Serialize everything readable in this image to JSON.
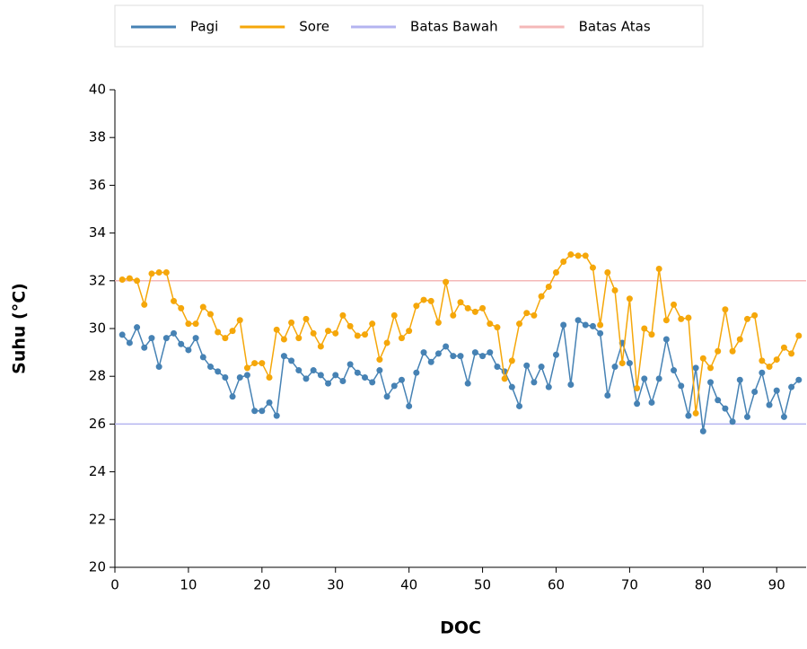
{
  "chart_data": {
    "type": "line",
    "x_label": "DOC",
    "y_label": "Suhu (°C)",
    "x": [
      1,
      2,
      3,
      4,
      5,
      6,
      7,
      8,
      9,
      10,
      11,
      12,
      13,
      14,
      15,
      16,
      17,
      18,
      19,
      20,
      21,
      22,
      23,
      24,
      25,
      26,
      27,
      28,
      29,
      30,
      31,
      32,
      33,
      34,
      35,
      36,
      37,
      38,
      39,
      40,
      41,
      42,
      43,
      44,
      45,
      46,
      47,
      48,
      49,
      50,
      51,
      52,
      53,
      54,
      55,
      56,
      57,
      58,
      59,
      60,
      61,
      62,
      63,
      64,
      65,
      66,
      67,
      68,
      69,
      70,
      71,
      72,
      73,
      74,
      75,
      76,
      77,
      78,
      79,
      80,
      81,
      82,
      83,
      84,
      85,
      86,
      87,
      88,
      89,
      90,
      91,
      92,
      93
    ],
    "series": [
      {
        "name": "Pagi",
        "color": "#4682b4",
        "values": [
          29.74,
          29.4,
          30.05,
          29.2,
          29.6,
          28.4,
          29.6,
          29.8,
          29.35,
          29.1,
          29.6,
          28.8,
          28.4,
          28.2,
          27.95,
          27.15,
          27.95,
          28.05,
          26.55,
          26.55,
          26.9,
          26.35,
          28.85,
          28.65,
          28.25,
          27.9,
          28.25,
          28.05,
          27.7,
          28.05,
          27.8,
          28.5,
          28.15,
          27.95,
          27.75,
          28.25,
          27.15,
          27.6,
          27.85,
          26.75,
          28.15,
          29.0,
          28.6,
          28.95,
          29.25,
          28.85,
          28.85,
          27.7,
          29.0,
          28.85,
          29.0,
          28.4,
          28.2,
          27.55,
          26.75,
          28.45,
          27.75,
          28.4,
          27.55,
          28.9,
          30.15,
          27.65,
          30.35,
          30.15,
          30.1,
          29.8,
          27.2,
          28.4,
          29.4,
          28.55,
          26.85,
          27.9,
          26.9,
          27.9,
          29.55,
          28.25,
          27.6,
          26.35,
          28.35,
          25.7,
          27.75,
          27.0,
          26.65,
          26.1,
          27.85,
          26.3,
          27.35,
          28.15,
          26.8,
          27.4,
          26.3,
          27.55,
          27.85
        ]
      },
      {
        "name": "Sore",
        "color": "#f5a70a",
        "values": [
          32.05,
          32.1,
          32.0,
          31.0,
          32.3,
          32.35,
          32.35,
          31.15,
          30.85,
          30.2,
          30.2,
          30.9,
          30.6,
          29.85,
          29.6,
          29.9,
          30.35,
          28.35,
          28.55,
          28.55,
          27.95,
          29.95,
          29.55,
          30.25,
          29.6,
          30.4,
          29.8,
          29.25,
          29.9,
          29.8,
          30.55,
          30.1,
          29.7,
          29.75,
          30.2,
          28.7,
          29.4,
          30.55,
          29.6,
          29.9,
          30.95,
          31.2,
          31.15,
          30.25,
          31.95,
          30.55,
          31.1,
          30.85,
          30.7,
          30.85,
          30.2,
          30.05,
          27.9,
          28.65,
          30.2,
          30.65,
          30.55,
          31.35,
          31.75,
          32.35,
          32.8,
          33.1,
          33.05,
          33.05,
          32.55,
          30.15,
          32.35,
          31.6,
          28.55,
          31.25,
          27.5,
          30.0,
          29.75,
          32.5,
          30.35,
          31.0,
          30.4,
          30.45,
          26.45,
          28.75,
          28.35,
          29.05,
          30.8,
          29.05,
          29.55,
          30.4,
          30.55,
          28.65,
          28.4,
          28.7,
          29.2,
          28.95,
          29.7
        ]
      }
    ],
    "hlines": [
      {
        "name": "Batas Bawah",
        "color": "#b4b4f0",
        "value": 26
      },
      {
        "name": "Batas Atas",
        "color": "#f4b8b8",
        "value": 32
      }
    ],
    "xlim": [
      0,
      94
    ],
    "ylim": [
      20,
      40
    ],
    "xticks": [
      0,
      10,
      20,
      30,
      40,
      50,
      60,
      70,
      80,
      90
    ],
    "yticks": [
      20,
      22,
      24,
      26,
      28,
      30,
      32,
      34,
      36,
      38,
      40
    ],
    "legend": "top"
  }
}
